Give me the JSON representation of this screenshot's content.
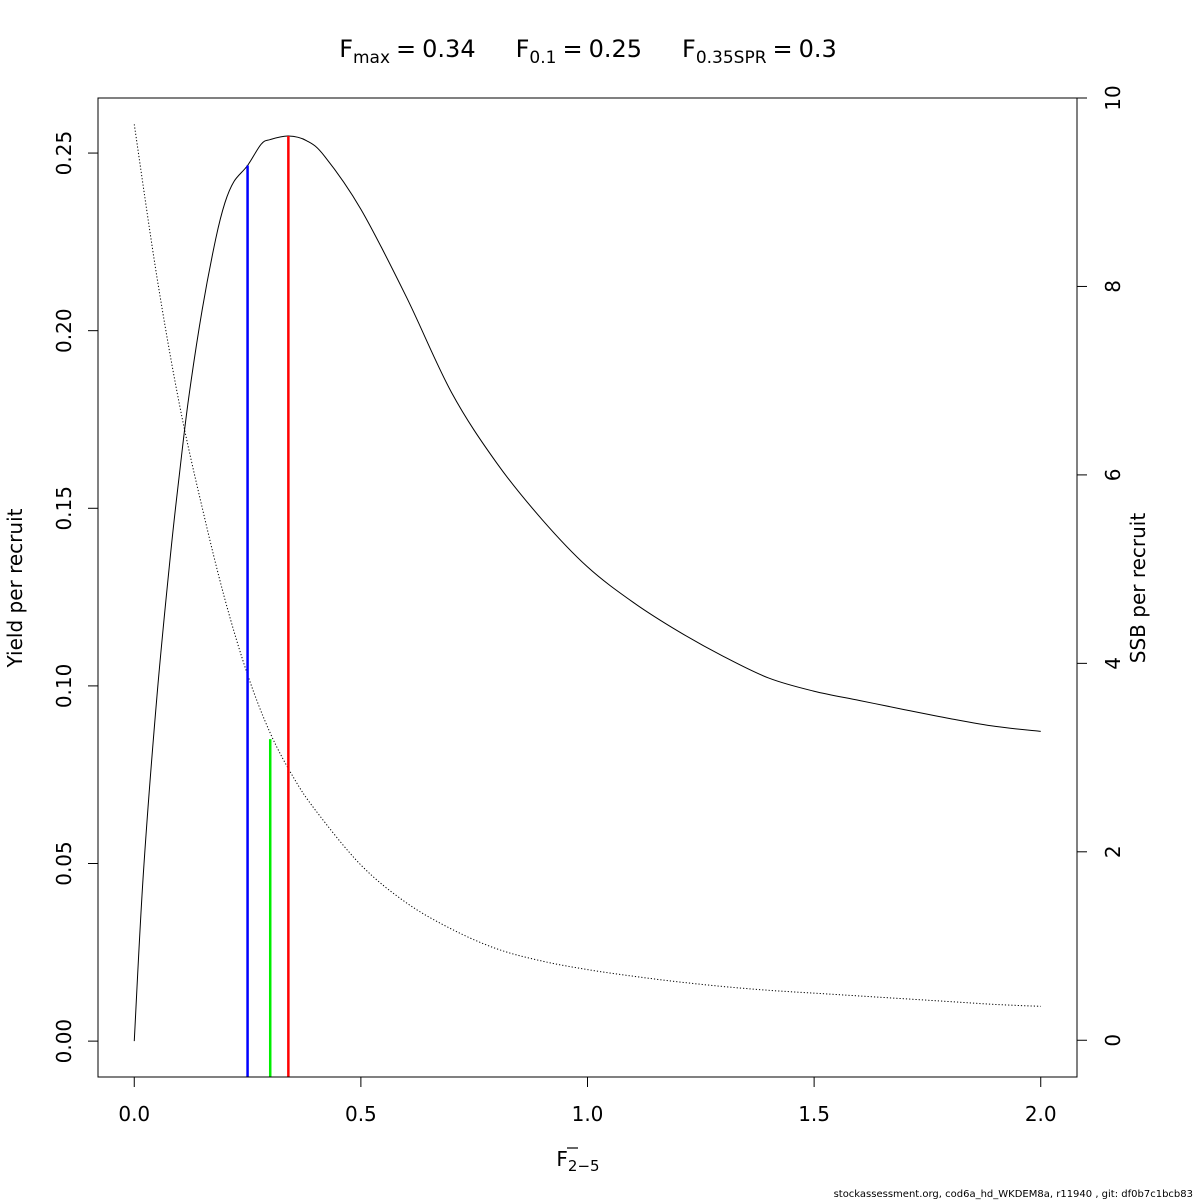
{
  "title": {
    "fmax": {
      "symbol": "F",
      "sub": "max",
      "value": "0.34"
    },
    "f01": {
      "symbol": "F",
      "sub": "0.1",
      "value": "0.25"
    },
    "fspr": {
      "symbol": "F",
      "sub": "0.35SPR",
      "value": "0.3"
    },
    "equals": "="
  },
  "footer": "stockassessment.org, cod6a_hd_WKDEM8a, r11940 , git: df0b7c1bcb83",
  "chart_data": {
    "type": "line",
    "xlabel": {
      "main": "F",
      "sub": "2−5",
      "overline": true
    },
    "ylabel": "Yield per recruit",
    "y2label": "SSB per recruit",
    "xlim": [
      -0.08,
      2.08
    ],
    "ylim": [
      -0.0101,
      0.2655
    ],
    "y2lim": [
      -0.39,
      10.0
    ],
    "x_ticks": [
      {
        "v": 0.0,
        "label": "0.0"
      },
      {
        "v": 0.5,
        "label": "0.5"
      },
      {
        "v": 1.0,
        "label": "1.0"
      },
      {
        "v": 1.5,
        "label": "1.5"
      },
      {
        "v": 2.0,
        "label": "2.0"
      }
    ],
    "y_ticks": [
      {
        "v": 0.0,
        "label": "0.00"
      },
      {
        "v": 0.05,
        "label": "0.05"
      },
      {
        "v": 0.1,
        "label": "0.10"
      },
      {
        "v": 0.15,
        "label": "0.15"
      },
      {
        "v": 0.2,
        "label": "0.20"
      },
      {
        "v": 0.25,
        "label": "0.25"
      }
    ],
    "y2_ticks": [
      {
        "v": 0,
        "label": "0"
      },
      {
        "v": 2,
        "label": "2"
      },
      {
        "v": 4,
        "label": "4"
      },
      {
        "v": 6,
        "label": "6"
      },
      {
        "v": 8,
        "label": "8"
      },
      {
        "v": 10,
        "label": "10"
      }
    ],
    "series": [
      {
        "axis": "left",
        "style": "solid",
        "color": "#000000",
        "x": [
          0,
          0.02,
          0.05,
          0.08,
          0.1,
          0.12,
          0.15,
          0.18,
          0.2,
          0.22,
          0.25,
          0.28,
          0.3,
          0.34,
          0.38,
          0.42,
          0.5,
          0.6,
          0.7,
          0.8,
          0.9,
          1.0,
          1.1,
          1.2,
          1.3,
          1.4,
          1.5,
          1.6,
          1.7,
          1.8,
          1.9,
          2.0
        ],
        "y": [
          0,
          0.047,
          0.097,
          0.137,
          0.16,
          0.181,
          0.206,
          0.226,
          0.236,
          0.242,
          0.2465,
          0.2525,
          0.2538,
          0.2548,
          0.2535,
          0.2491,
          0.2342,
          0.2096,
          0.1826,
          0.1627,
          0.1468,
          0.1335,
          0.1236,
          0.1154,
          0.1083,
          0.1022,
          0.0985,
          0.0959,
          0.0933,
          0.0908,
          0.0886,
          0.0872
        ]
      },
      {
        "axis": "right",
        "style": "dotted",
        "color": "#000000",
        "x": [
          0,
          0.05,
          0.1,
          0.15,
          0.2,
          0.25,
          0.3,
          0.35,
          0.4,
          0.5,
          0.6,
          0.7,
          0.8,
          0.9,
          1.0,
          1.1,
          1.2,
          1.3,
          1.4,
          1.5,
          1.6,
          1.7,
          1.8,
          1.9,
          2.0
        ],
        "y": [
          9.72,
          8.1,
          6.74,
          5.65,
          4.68,
          3.88,
          3.26,
          2.8,
          2.44,
          1.86,
          1.46,
          1.18,
          0.97,
          0.84,
          0.75,
          0.68,
          0.62,
          0.57,
          0.53,
          0.5,
          0.47,
          0.44,
          0.41,
          0.38,
          0.36
        ]
      }
    ],
    "reference_lines": [
      {
        "name": "F0.1",
        "x": 0.25,
        "y_top": 0.2465,
        "color": "#0000ff"
      },
      {
        "name": "F0.35SPR",
        "x": 0.3,
        "y_top": 0.085,
        "color": "#00ee00"
      },
      {
        "name": "Fmax",
        "x": 0.34,
        "y_top": 0.2548,
        "color": "#ff0000"
      }
    ]
  }
}
